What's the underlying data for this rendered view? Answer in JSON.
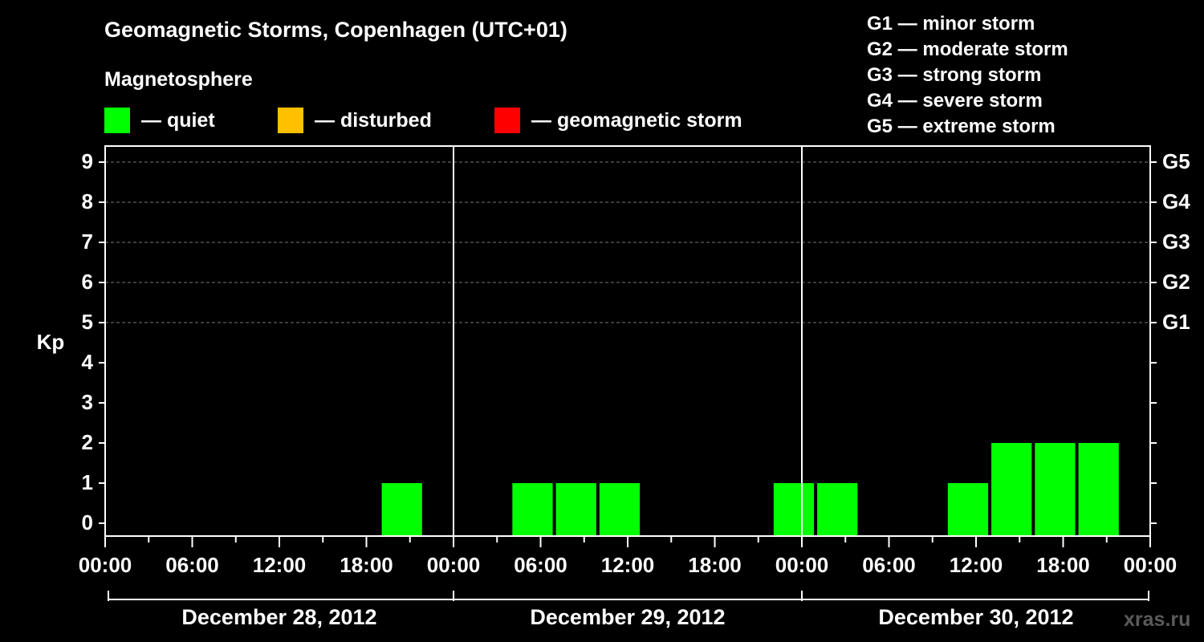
{
  "title": "Geomagnetic Storms, Copenhagen (UTC+01)",
  "legend": {
    "title": "Magnetosphere",
    "items": [
      {
        "label": "— quiet",
        "color": "#00ff00"
      },
      {
        "label": "— disturbed",
        "color": "#ffc000"
      },
      {
        "label": "— geomagnetic storm",
        "color": "#ff0000"
      }
    ]
  },
  "g_levels": [
    "G1 — minor storm",
    "G2 — moderate storm",
    "G3 — strong storm",
    "G4 — severe storm",
    "G5 — extreme storm"
  ],
  "watermark": "xras.ru",
  "chart_data": {
    "type": "bar",
    "title": "Geomagnetic Storms, Copenhagen (UTC+01)",
    "ylabel": "Kp",
    "ylim": [
      0,
      9
    ],
    "y_ticks": [
      "0",
      "1",
      "2",
      "3",
      "4",
      "5",
      "6",
      "7",
      "8",
      "9"
    ],
    "right_ticks": [
      {
        "kp": 5,
        "label": "G1"
      },
      {
        "kp": 6,
        "label": "G2"
      },
      {
        "kp": 7,
        "label": "G3"
      },
      {
        "kp": 8,
        "label": "G4"
      },
      {
        "kp": 9,
        "label": "G5"
      }
    ],
    "x_tick_labels": [
      "00:00",
      "06:00",
      "12:00",
      "18:00",
      "00:00",
      "06:00",
      "12:00",
      "18:00",
      "00:00",
      "06:00",
      "12:00",
      "18:00",
      "00:00"
    ],
    "days": [
      "December 28, 2012",
      "December 29, 2012",
      "December 30, 2012"
    ],
    "grid": "dashed at Kp 5-9",
    "bar_colors": {
      "quiet": "#00ff00",
      "disturbed": "#ffc000",
      "storm": "#ff0000"
    },
    "bars": [
      {
        "day": 0,
        "start_hour": 19,
        "kp": 1
      },
      {
        "day": 1,
        "start_hour": 4,
        "kp": 1
      },
      {
        "day": 1,
        "start_hour": 7,
        "kp": 1
      },
      {
        "day": 1,
        "start_hour": 10,
        "kp": 1
      },
      {
        "day": 1,
        "start_hour": 22,
        "kp": 1
      },
      {
        "day": 2,
        "start_hour": 1,
        "kp": 1
      },
      {
        "day": 2,
        "start_hour": 10,
        "kp": 1
      },
      {
        "day": 2,
        "start_hour": 13,
        "kp": 2
      },
      {
        "day": 2,
        "start_hour": 16,
        "kp": 2
      },
      {
        "day": 2,
        "start_hour": 19,
        "kp": 2
      }
    ]
  }
}
